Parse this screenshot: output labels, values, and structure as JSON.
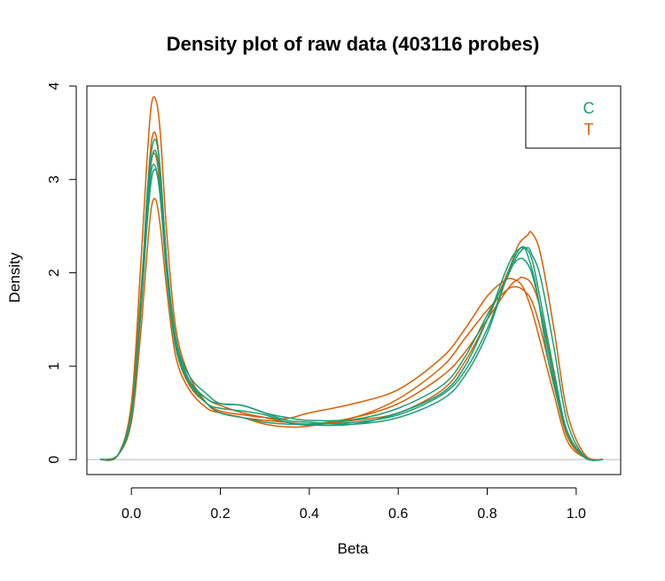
{
  "chart_data": {
    "type": "line",
    "title": "Density plot of raw data (403116 probes)",
    "xlabel": "Beta",
    "ylabel": "Density",
    "xlim": [
      -0.1,
      1.1
    ],
    "ylim": [
      0,
      4
    ],
    "x_ticks": [
      "0.0",
      "0.2",
      "0.4",
      "0.6",
      "0.8",
      "1.0"
    ],
    "y_ticks": [
      "0",
      "1",
      "2",
      "3",
      "4"
    ],
    "baseline": 0,
    "legend": {
      "position": "top-right",
      "entries": [
        {
          "label": "C",
          "color": "#1b9e77"
        },
        {
          "label": "T",
          "color": "#d95f02"
        }
      ]
    },
    "series": [
      {
        "color": "#d95f02",
        "x": [
          -0.07,
          -0.03,
          0.0,
          0.02,
          0.035,
          0.045,
          0.055,
          0.065,
          0.08,
          0.1,
          0.13,
          0.17,
          0.2,
          0.25,
          0.3,
          0.35,
          0.4,
          0.5,
          0.6,
          0.7,
          0.75,
          0.8,
          0.85,
          0.87,
          0.89,
          0.9,
          0.92,
          0.95,
          0.98,
          1.02,
          1.06
        ],
        "y": [
          0.0,
          0.05,
          0.6,
          2.0,
          3.2,
          3.8,
          3.85,
          3.5,
          2.4,
          1.4,
          0.9,
          0.6,
          0.5,
          0.45,
          0.42,
          0.4,
          0.38,
          0.42,
          0.5,
          0.75,
          1.05,
          1.5,
          2.05,
          2.3,
          2.4,
          2.43,
          2.2,
          1.4,
          0.5,
          0.05,
          0.0
        ]
      },
      {
        "color": "#d95f02",
        "x": [
          -0.07,
          -0.03,
          0.0,
          0.02,
          0.035,
          0.045,
          0.055,
          0.065,
          0.08,
          0.1,
          0.13,
          0.17,
          0.2,
          0.25,
          0.3,
          0.35,
          0.4,
          0.5,
          0.6,
          0.7,
          0.75,
          0.8,
          0.85,
          0.87,
          0.88,
          0.9,
          0.92,
          0.95,
          0.98,
          1.02,
          1.06
        ],
        "y": [
          0.0,
          0.05,
          0.5,
          1.6,
          2.8,
          3.4,
          3.48,
          3.1,
          2.1,
          1.2,
          0.85,
          0.65,
          0.58,
          0.5,
          0.45,
          0.4,
          0.38,
          0.45,
          0.6,
          0.9,
          1.15,
          1.5,
          1.85,
          1.93,
          1.95,
          1.88,
          1.6,
          0.9,
          0.3,
          0.03,
          0.0
        ]
      },
      {
        "color": "#d95f02",
        "x": [
          -0.07,
          -0.03,
          0.0,
          0.02,
          0.035,
          0.045,
          0.055,
          0.065,
          0.08,
          0.1,
          0.13,
          0.17,
          0.2,
          0.25,
          0.3,
          0.35,
          0.4,
          0.5,
          0.6,
          0.7,
          0.75,
          0.8,
          0.84,
          0.86,
          0.88,
          0.9,
          0.92,
          0.95,
          0.98,
          1.02,
          1.06
        ],
        "y": [
          0.0,
          0.05,
          0.4,
          1.3,
          2.2,
          2.7,
          2.78,
          2.5,
          1.8,
          1.1,
          0.75,
          0.55,
          0.5,
          0.45,
          0.38,
          0.35,
          0.36,
          0.45,
          0.65,
          1.0,
          1.3,
          1.6,
          1.8,
          1.85,
          1.82,
          1.7,
          1.4,
          0.8,
          0.25,
          0.02,
          0.0
        ]
      },
      {
        "color": "#d95f02",
        "x": [
          -0.07,
          -0.03,
          0.0,
          0.02,
          0.035,
          0.045,
          0.055,
          0.065,
          0.08,
          0.1,
          0.13,
          0.17,
          0.2,
          0.25,
          0.3,
          0.35,
          0.4,
          0.5,
          0.6,
          0.7,
          0.75,
          0.8,
          0.84,
          0.86,
          0.88,
          0.9,
          0.92,
          0.95,
          0.98,
          1.02,
          1.06
        ],
        "y": [
          0.0,
          0.05,
          0.55,
          1.7,
          2.7,
          3.2,
          3.25,
          2.9,
          2.0,
          1.2,
          0.8,
          0.6,
          0.52,
          0.48,
          0.45,
          0.44,
          0.5,
          0.6,
          0.75,
          1.1,
          1.4,
          1.75,
          1.92,
          1.93,
          1.85,
          1.6,
          1.25,
          0.7,
          0.2,
          0.02,
          0.0
        ]
      },
      {
        "color": "#1b9e77",
        "x": [
          -0.07,
          -0.03,
          0.0,
          0.02,
          0.035,
          0.045,
          0.055,
          0.065,
          0.08,
          0.1,
          0.13,
          0.17,
          0.2,
          0.25,
          0.3,
          0.35,
          0.4,
          0.5,
          0.6,
          0.7,
          0.75,
          0.8,
          0.84,
          0.87,
          0.89,
          0.9,
          0.92,
          0.95,
          0.98,
          1.02,
          1.06
        ],
        "y": [
          0.0,
          0.05,
          0.5,
          1.6,
          2.7,
          3.2,
          3.3,
          3.0,
          2.1,
          1.3,
          0.85,
          0.6,
          0.5,
          0.45,
          0.4,
          0.38,
          0.38,
          0.4,
          0.48,
          0.7,
          0.95,
          1.4,
          1.9,
          2.2,
          2.27,
          2.2,
          1.95,
          1.2,
          0.4,
          0.03,
          0.0
        ]
      },
      {
        "color": "#1b9e77",
        "x": [
          -0.07,
          -0.03,
          0.0,
          0.02,
          0.035,
          0.045,
          0.055,
          0.065,
          0.08,
          0.1,
          0.13,
          0.17,
          0.2,
          0.25,
          0.3,
          0.35,
          0.4,
          0.5,
          0.6,
          0.7,
          0.75,
          0.8,
          0.84,
          0.86,
          0.88,
          0.9,
          0.92,
          0.95,
          0.98,
          1.02,
          1.06
        ],
        "y": [
          0.0,
          0.05,
          0.5,
          1.5,
          2.5,
          3.0,
          3.1,
          2.85,
          2.0,
          1.25,
          0.85,
          0.65,
          0.6,
          0.58,
          0.5,
          0.42,
          0.4,
          0.38,
          0.45,
          0.65,
          0.9,
          1.35,
          1.9,
          2.15,
          2.28,
          2.15,
          1.7,
          0.95,
          0.3,
          0.02,
          0.0
        ]
      },
      {
        "color": "#1b9e77",
        "x": [
          -0.07,
          -0.03,
          0.0,
          0.02,
          0.035,
          0.045,
          0.055,
          0.065,
          0.08,
          0.1,
          0.13,
          0.17,
          0.2,
          0.25,
          0.3,
          0.35,
          0.4,
          0.5,
          0.6,
          0.7,
          0.75,
          0.8,
          0.84,
          0.86,
          0.88,
          0.89,
          0.91,
          0.94,
          0.98,
          1.02,
          1.06
        ],
        "y": [
          0.0,
          0.05,
          0.45,
          1.5,
          2.6,
          3.1,
          3.12,
          2.8,
          1.95,
          1.2,
          0.82,
          0.6,
          0.55,
          0.52,
          0.48,
          0.4,
          0.37,
          0.38,
          0.5,
          0.72,
          1.0,
          1.5,
          2.0,
          2.2,
          2.27,
          2.2,
          1.85,
          1.0,
          0.3,
          0.02,
          0.0
        ]
      },
      {
        "color": "#1b9e77",
        "x": [
          -0.07,
          -0.03,
          0.0,
          0.02,
          0.035,
          0.045,
          0.055,
          0.065,
          0.08,
          0.1,
          0.13,
          0.17,
          0.2,
          0.25,
          0.3,
          0.35,
          0.4,
          0.5,
          0.6,
          0.7,
          0.75,
          0.8,
          0.84,
          0.86,
          0.88,
          0.9,
          0.92,
          0.95,
          0.98,
          1.02,
          1.06
        ],
        "y": [
          0.0,
          0.05,
          0.5,
          1.6,
          2.8,
          3.3,
          3.42,
          3.1,
          2.1,
          1.3,
          0.9,
          0.7,
          0.6,
          0.58,
          0.5,
          0.45,
          0.42,
          0.43,
          0.55,
          0.8,
          1.1,
          1.55,
          1.9,
          2.1,
          2.15,
          2.0,
          1.6,
          0.85,
          0.28,
          0.02,
          0.0
        ]
      }
    ]
  }
}
